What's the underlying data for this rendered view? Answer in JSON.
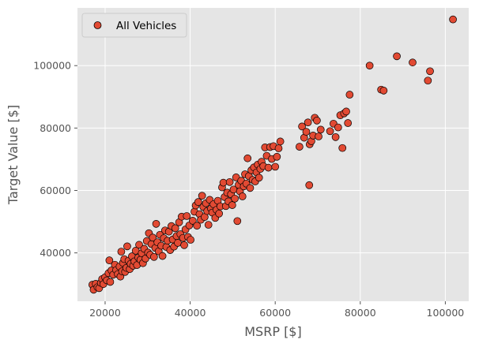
{
  "colors": {
    "plot_background": "#e5e5e5",
    "grid": "#ffffff",
    "marker_fill": "#e24a33",
    "marker_edge": "#000000",
    "text": "#555555"
  },
  "chart_data": {
    "type": "scatter",
    "title": "",
    "xlabel": "MSRP [$]",
    "ylabel": "Target Value [$]",
    "xlim": [
      13500,
      105500
    ],
    "ylim": [
      24500,
      118500
    ],
    "xticks": [
      20000,
      40000,
      60000,
      80000,
      100000
    ],
    "yticks": [
      40000,
      60000,
      80000,
      100000
    ],
    "grid": true,
    "legend": {
      "position": "top-left"
    },
    "series": [
      {
        "name": "All Vehicles",
        "points": [
          [
            17000,
            29800
          ],
          [
            17300,
            28200
          ],
          [
            17800,
            30100
          ],
          [
            18200,
            29000
          ],
          [
            18600,
            28700
          ],
          [
            19000,
            30400
          ],
          [
            19300,
            31600
          ],
          [
            19600,
            30000
          ],
          [
            20000,
            32200
          ],
          [
            20400,
            31200
          ],
          [
            20800,
            33500
          ],
          [
            21000,
            37600
          ],
          [
            21200,
            30700
          ],
          [
            21500,
            34400
          ],
          [
            21900,
            33000
          ],
          [
            22300,
            36200
          ],
          [
            22600,
            34500
          ],
          [
            23000,
            33200
          ],
          [
            23400,
            35600
          ],
          [
            23600,
            32400
          ],
          [
            23800,
            40400
          ],
          [
            24000,
            34100
          ],
          [
            24200,
            36800
          ],
          [
            24500,
            38000
          ],
          [
            24700,
            33900
          ],
          [
            25000,
            35200
          ],
          [
            25200,
            42100
          ],
          [
            25500,
            37500
          ],
          [
            25800,
            34800
          ],
          [
            26000,
            36500
          ],
          [
            26300,
            38900
          ],
          [
            26600,
            35900
          ],
          [
            26900,
            37300
          ],
          [
            27200,
            40700
          ],
          [
            27500,
            36100
          ],
          [
            27800,
            38500
          ],
          [
            28000,
            42600
          ],
          [
            28300,
            37800
          ],
          [
            28600,
            39900
          ],
          [
            28900,
            36700
          ],
          [
            29200,
            41300
          ],
          [
            29500,
            38200
          ],
          [
            29800,
            43800
          ],
          [
            30100,
            40100
          ],
          [
            30300,
            46300
          ],
          [
            30600,
            39400
          ],
          [
            30900,
            42800
          ],
          [
            31200,
            44900
          ],
          [
            31500,
            38700
          ],
          [
            31800,
            41600
          ],
          [
            32000,
            49300
          ],
          [
            32300,
            43400
          ],
          [
            32600,
            40500
          ],
          [
            32900,
            45800
          ],
          [
            33200,
            42300
          ],
          [
            33500,
            39000
          ],
          [
            33800,
            44700
          ],
          [
            34100,
            47200
          ],
          [
            34400,
            41900
          ],
          [
            34700,
            43900
          ],
          [
            35000,
            46800
          ],
          [
            35300,
            40900
          ],
          [
            35600,
            48600
          ],
          [
            35900,
            44300
          ],
          [
            36200,
            42000
          ],
          [
            36500,
            47900
          ],
          [
            36800,
            45400
          ],
          [
            37100,
            43200
          ],
          [
            37400,
            49800
          ],
          [
            37700,
            46000
          ],
          [
            38000,
            51600
          ],
          [
            38300,
            44800
          ],
          [
            38600,
            42500
          ],
          [
            38900,
            47500
          ],
          [
            39200,
            51800
          ],
          [
            39500,
            45100
          ],
          [
            39800,
            48800
          ],
          [
            40100,
            44200
          ],
          [
            40600,
            50300
          ],
          [
            41000,
            53200
          ],
          [
            41300,
            55200
          ],
          [
            41600,
            48700
          ],
          [
            41900,
            56300
          ],
          [
            42200,
            52400
          ],
          [
            42500,
            50600
          ],
          [
            42800,
            58300
          ],
          [
            43100,
            54700
          ],
          [
            43400,
            51500
          ],
          [
            43700,
            55900
          ],
          [
            44000,
            53400
          ],
          [
            44300,
            49000
          ],
          [
            44600,
            57000
          ],
          [
            44900,
            54200
          ],
          [
            45200,
            52900
          ],
          [
            45500,
            55600
          ],
          [
            45900,
            51200
          ],
          [
            46200,
            53800
          ],
          [
            46500,
            56700
          ],
          [
            46800,
            52600
          ],
          [
            47100,
            54900
          ],
          [
            47500,
            61000
          ],
          [
            47800,
            62500
          ],
          [
            48100,
            57900
          ],
          [
            48400,
            55000
          ],
          [
            48700,
            59300
          ],
          [
            49000,
            56500
          ],
          [
            49300,
            62700
          ],
          [
            49600,
            58800
          ],
          [
            49900,
            55300
          ],
          [
            50200,
            60300
          ],
          [
            50500,
            57400
          ],
          [
            50800,
            64200
          ],
          [
            51100,
            50200
          ],
          [
            51400,
            61800
          ],
          [
            51700,
            59700
          ],
          [
            52000,
            63100
          ],
          [
            52300,
            58100
          ],
          [
            52600,
            61300
          ],
          [
            52900,
            65200
          ],
          [
            53200,
            62200
          ],
          [
            53500,
            70300
          ],
          [
            53800,
            64600
          ],
          [
            54100,
            60800
          ],
          [
            54400,
            66500
          ],
          [
            54700,
            63400
          ],
          [
            55000,
            67400
          ],
          [
            55300,
            62900
          ],
          [
            55600,
            65800
          ],
          [
            55900,
            68300
          ],
          [
            56200,
            64100
          ],
          [
            56500,
            66900
          ],
          [
            56800,
            69200
          ],
          [
            57200,
            67800
          ],
          [
            57600,
            73800
          ],
          [
            58000,
            71100
          ],
          [
            58400,
            67300
          ],
          [
            58800,
            73900
          ],
          [
            59200,
            70100
          ],
          [
            59600,
            74200
          ],
          [
            60000,
            67600
          ],
          [
            60400,
            70800
          ],
          [
            60800,
            73500
          ],
          [
            61200,
            75700
          ],
          [
            65700,
            74000
          ],
          [
            66300,
            80500
          ],
          [
            66800,
            76900
          ],
          [
            67300,
            78800
          ],
          [
            67700,
            81800
          ],
          [
            68100,
            74800
          ],
          [
            68000,
            61700
          ],
          [
            68500,
            75800
          ],
          [
            68900,
            77600
          ],
          [
            69300,
            83300
          ],
          [
            69800,
            82400
          ],
          [
            70200,
            77300
          ],
          [
            70700,
            79500
          ],
          [
            72900,
            79000
          ],
          [
            73700,
            81400
          ],
          [
            74200,
            77100
          ],
          [
            74800,
            80200
          ],
          [
            75300,
            84100
          ],
          [
            75800,
            73600
          ],
          [
            76200,
            84700
          ],
          [
            76700,
            85300
          ],
          [
            77100,
            81600
          ],
          [
            77500,
            90700
          ],
          [
            82200,
            100000
          ],
          [
            84900,
            92300
          ],
          [
            85500,
            92000
          ],
          [
            88600,
            103000
          ],
          [
            92300,
            101000
          ],
          [
            95900,
            95200
          ],
          [
            96400,
            98200
          ],
          [
            101800,
            114800
          ]
        ]
      }
    ]
  }
}
